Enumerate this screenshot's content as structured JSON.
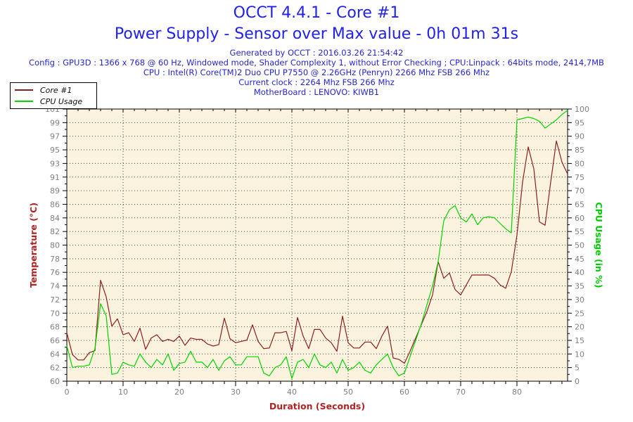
{
  "page": {
    "title": "OCCT 4.4.1 - Core #1",
    "subtitle": "Power Supply - Sensor over Max value - 0h 01m 31s",
    "title_color": "#2121ee",
    "header_color": "#2626cd",
    "header_lines": [
      "Generated by OCCT : 2016.03.26 21:54:42",
      "Config : GPU3D : 1366 x 768 @ 60 Hz, Windowed mode, Shader Complexity 1, without Error Checking ; CPU:Linpack : 64bits mode, 2414,7MB",
      "CPU : Intel(R) Core(TM)2 Duo CPU P7550 @ 2.26GHz (Penryn) 2266 Mhz FSB 266 Mhz",
      "Current clock : 2264 Mhz FSB 266 Mhz",
      "MotherBoard : LENOVO: KIWB1"
    ]
  },
  "legend": {
    "items": [
      {
        "label": "Core #1",
        "color": "#8b1f1f"
      },
      {
        "label": "CPU Usage",
        "color": "#00d400"
      }
    ]
  },
  "chart_data": {
    "type": "line",
    "title": "OCCT 4.4.1 - Core #1",
    "subtitle": "Power Supply - Sensor over Max value - 0h 01m 31s",
    "plot_bg": "#fbf3dd",
    "grid": true,
    "legend_position": "top-left",
    "x": [
      0,
      1,
      2,
      3,
      4,
      5,
      6,
      7,
      8,
      9,
      10,
      11,
      12,
      13,
      14,
      15,
      16,
      17,
      18,
      19,
      20,
      21,
      22,
      23,
      24,
      25,
      26,
      27,
      28,
      29,
      30,
      31,
      32,
      33,
      34,
      35,
      36,
      37,
      38,
      39,
      40,
      41,
      42,
      43,
      44,
      45,
      46,
      47,
      48,
      49,
      50,
      51,
      52,
      53,
      54,
      55,
      56,
      57,
      58,
      59,
      60,
      61,
      62,
      63,
      64,
      65,
      66,
      67,
      68,
      69,
      70,
      71,
      72,
      73,
      74,
      75,
      76,
      77,
      78,
      79,
      80,
      81,
      82,
      83,
      84,
      85,
      86,
      87,
      88,
      89
    ],
    "series": [
      {
        "name": "Core #1",
        "axis": "left",
        "color": "#8b1f1f",
        "values": [
          67.3,
          64,
          63.2,
          63.2,
          64.3,
          64.6,
          75.2,
          72.7,
          68.3,
          69.4,
          67,
          67.3,
          66,
          68,
          64.8,
          66.5,
          67,
          66,
          66.3,
          66,
          66.8,
          65.4,
          66.5,
          66.3,
          66.3,
          65.6,
          65.3,
          65.5,
          69.5,
          66.4,
          65.8,
          66,
          66.2,
          68.5,
          66,
          64.9,
          65,
          67.3,
          67.3,
          67.5,
          64.6,
          69.6,
          66.8,
          64.9,
          67.8,
          67.8,
          66.5,
          65.8,
          64.5,
          69.8,
          65.8,
          65,
          65,
          65.9,
          65.9,
          64.9,
          66.8,
          68.3,
          63.5,
          63.3,
          62.7,
          64.5,
          66.5,
          68.5,
          70.5,
          73,
          78,
          75.5,
          76.3,
          73.8,
          73,
          74.5,
          76,
          76,
          76,
          76,
          75.5,
          74.5,
          74,
          76.5,
          82,
          90,
          95.3,
          92,
          84,
          83.5,
          90,
          96.2,
          93,
          91.2
        ]
      },
      {
        "name": "CPU Usage",
        "axis": "right",
        "color": "#00d400",
        "values": [
          13,
          5,
          5.5,
          5.5,
          6,
          12,
          28.5,
          24,
          2.5,
          3,
          7,
          6,
          5.5,
          10,
          7,
          5,
          8,
          6,
          10,
          4,
          6.5,
          7,
          11,
          7,
          7,
          5,
          8,
          4,
          7.5,
          9,
          6,
          6,
          9,
          9,
          9,
          3,
          2,
          5,
          6,
          9,
          1,
          7,
          8,
          5,
          10,
          6,
          5,
          7,
          3,
          8,
          4,
          5,
          7,
          4,
          3,
          6,
          8,
          10,
          5,
          2,
          3,
          9,
          15,
          21,
          28,
          35,
          44,
          59,
          63,
          64.5,
          60,
          58.5,
          61.5,
          57.5,
          60,
          60.5,
          60,
          58,
          56,
          54.5,
          96,
          96.5,
          97,
          96.5,
          95.5,
          93,
          94.5,
          96,
          98,
          99.5
        ]
      }
    ],
    "axes": {
      "left": {
        "label": "Temperature (°C)",
        "color": "#b22222",
        "min": 60,
        "max": 101,
        "tick_labels": [
          "60",
          "62",
          "64",
          "66",
          "68",
          "70",
          "72",
          "74",
          "76",
          "78",
          "80",
          "82",
          "84",
          "86",
          "89",
          "91",
          "93",
          "95",
          "97",
          "99",
          "101"
        ]
      },
      "right": {
        "label": "CPU Usage (in %)",
        "color": "#00cc00",
        "min": 0,
        "max": 100,
        "label_step": 5,
        "tick_labels": [
          "0",
          "5",
          "10",
          "15",
          "20",
          "25",
          "30",
          "35",
          "40",
          "45",
          "50",
          "55",
          "60",
          "65",
          "70",
          "75",
          "80",
          "85",
          "90",
          "95",
          "100"
        ]
      },
      "x": {
        "label": "Duration (Seconds)",
        "color": "#b22222",
        "min": 0,
        "max": 89,
        "major_step": 10,
        "minor_step": 2,
        "tick_labels": [
          "0",
          "10",
          "20",
          "30",
          "40",
          "50",
          "60",
          "70",
          "80"
        ]
      }
    },
    "tick_label_color": "#808080"
  }
}
